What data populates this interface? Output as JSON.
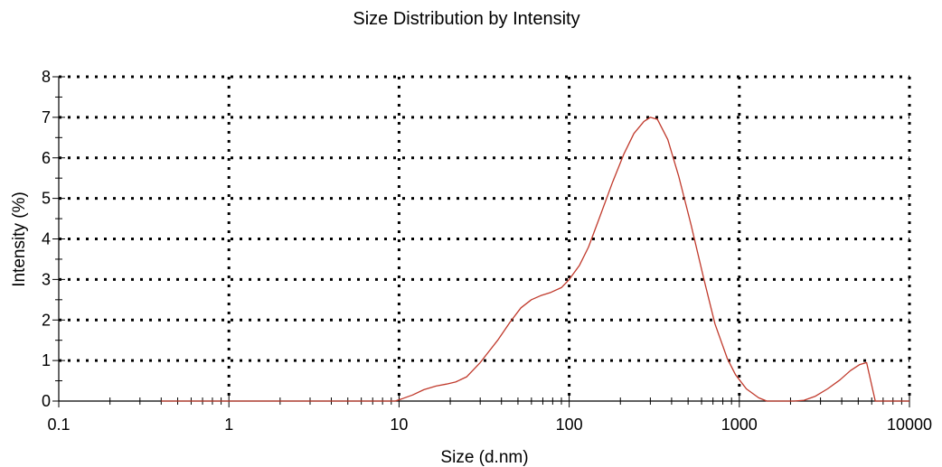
{
  "chart_data": {
    "type": "line",
    "title": "Size Distribution by Intensity",
    "xlabel": "Size (d.nm)",
    "ylabel": "Intensity (%)",
    "xscale": "log",
    "xlim": [
      0.1,
      10000
    ],
    "ylim": [
      0,
      8
    ],
    "xticks": [
      0.1,
      1,
      10,
      100,
      1000,
      10000
    ],
    "xtick_labels": [
      "0.1",
      "1",
      "10",
      "100",
      "1000",
      "10000"
    ],
    "yticks": [
      0,
      1,
      2,
      3,
      4,
      5,
      6,
      7,
      8
    ],
    "ytick_labels": [
      "0",
      "1",
      "2",
      "3",
      "4",
      "5",
      "6",
      "7",
      "8"
    ],
    "grid": true,
    "line_color": "#c0392b",
    "series": [
      {
        "x": [
          0.4,
          0.5,
          1,
          2,
          5,
          9.5,
          10.3,
          12,
          14,
          16.5,
          19,
          21.5,
          25,
          30,
          38,
          45,
          52,
          60,
          68,
          78,
          90,
          100,
          115,
          130,
          150,
          180,
          210,
          240,
          275,
          300,
          330,
          380,
          440,
          520,
          620,
          720,
          850,
          950,
          1100,
          1300,
          1450,
          1800,
          2100,
          2400,
          2800,
          3300,
          3900,
          4500,
          5100,
          5600,
          6300,
          6700,
          10000
        ],
        "y": [
          0,
          0,
          0,
          0,
          0,
          0,
          0.05,
          0.15,
          0.28,
          0.37,
          0.42,
          0.47,
          0.6,
          0.95,
          1.5,
          1.95,
          2.3,
          2.5,
          2.6,
          2.68,
          2.8,
          3.0,
          3.35,
          3.8,
          4.5,
          5.4,
          6.1,
          6.6,
          6.9,
          7.0,
          6.95,
          6.45,
          5.55,
          4.35,
          3.0,
          1.9,
          1.05,
          0.65,
          0.3,
          0.08,
          0.0,
          0.0,
          0.0,
          0.02,
          0.12,
          0.3,
          0.52,
          0.75,
          0.9,
          0.95,
          0.0,
          0.0,
          0.0
        ]
      }
    ]
  }
}
